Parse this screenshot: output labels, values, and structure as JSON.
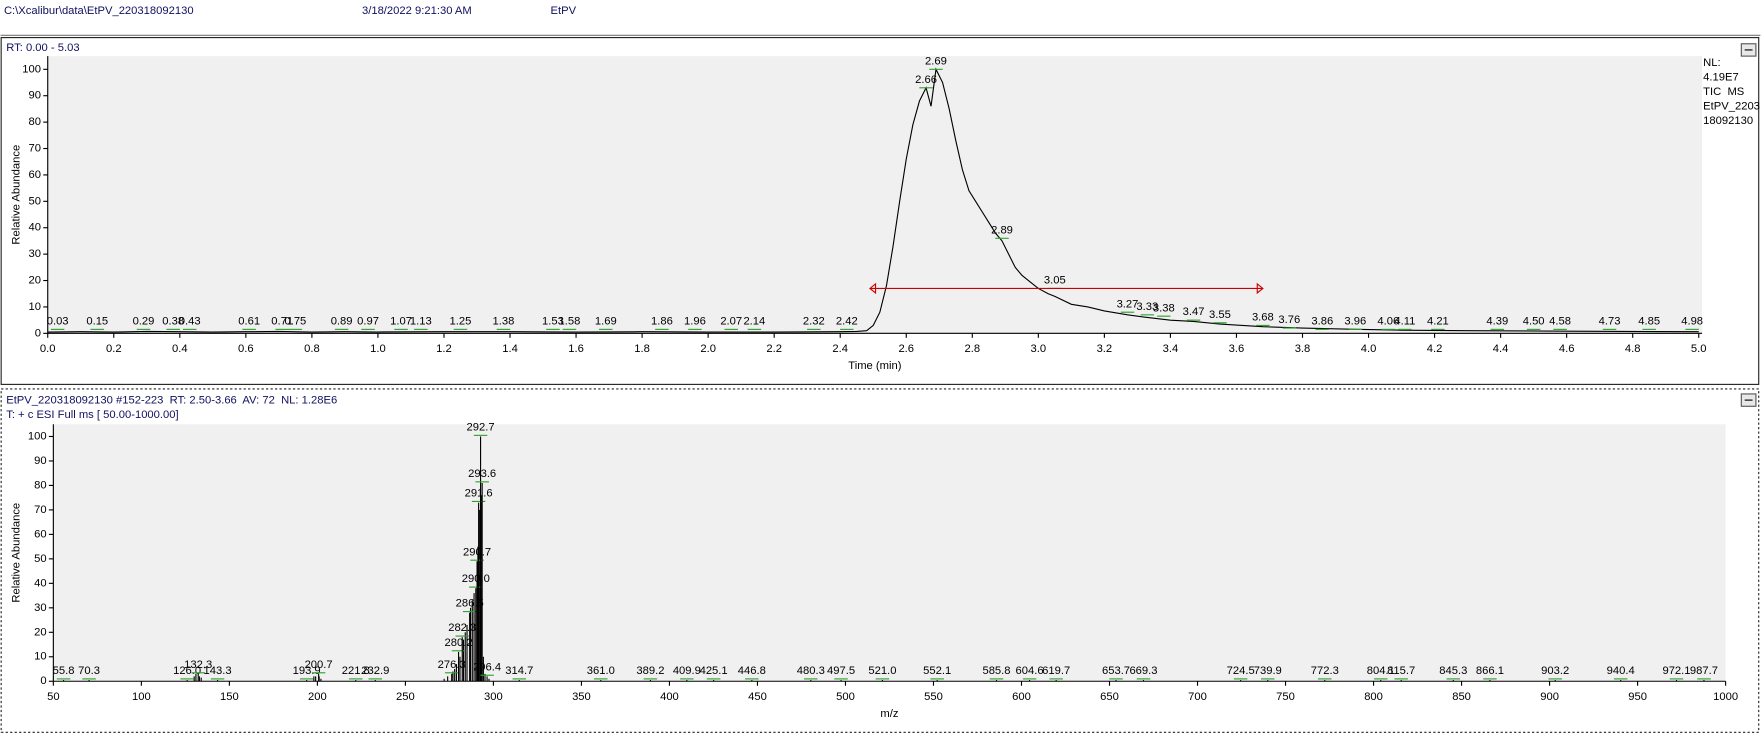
{
  "header": {
    "file": "C:\\Xcalibur\\data\\EtPV_220318092130",
    "date": "3/18/2022 9:21:30 AM",
    "sample": "EtPV"
  },
  "chart_data": [
    {
      "type": "line",
      "title": "RT: 0.00 - 5.03",
      "x_label": "Time (min)",
      "y_label": "Relative Abundance",
      "info": [
        "NL:",
        "4.19E7",
        "TIC  MS",
        "EtPV_2203",
        "18092130"
      ],
      "color": "#000000",
      "x": [
        0,
        0.1,
        0.2,
        0.3,
        0.4,
        0.5,
        0.6,
        0.7,
        0.8,
        0.9,
        1.0,
        1.2,
        1.4,
        1.6,
        1.8,
        2.0,
        2.2,
        2.4,
        2.45,
        2.48,
        2.5,
        2.52,
        2.54,
        2.56,
        2.58,
        2.6,
        2.62,
        2.64,
        2.66,
        2.675,
        2.69,
        2.71,
        2.73,
        2.75,
        2.77,
        2.79,
        2.81,
        2.83,
        2.85,
        2.87,
        2.89,
        2.91,
        2.93,
        2.95,
        2.97,
        3.0,
        3.03,
        3.05,
        3.1,
        3.15,
        3.2,
        3.27,
        3.33,
        3.4,
        3.47,
        3.55,
        3.68,
        3.8,
        3.96,
        4.1,
        4.3,
        4.6,
        5.0
      ],
      "values": [
        0.5,
        0.6,
        0.5,
        0.7,
        0.6,
        0.5,
        0.6,
        0.7,
        0.5,
        0.6,
        0.5,
        0.6,
        0.6,
        0.5,
        0.6,
        0.5,
        0.5,
        0.6,
        0.7,
        1,
        3,
        8,
        18,
        33,
        50,
        66,
        79,
        88,
        93,
        86,
        100,
        95,
        85,
        73,
        62,
        54,
        50,
        46,
        42,
        38,
        35,
        30,
        25,
        22,
        20,
        17,
        15,
        14,
        11,
        10,
        8.5,
        7,
        6,
        5,
        4.5,
        3.5,
        2.5,
        2,
        1.5,
        1.2,
        1,
        0.8,
        0.6
      ],
      "peak_labels": {
        "color": "#2ca02c",
        "x": [
          0.03,
          0.15,
          0.29,
          0.38,
          0.43,
          0.61,
          0.71,
          0.75,
          0.89,
          0.97,
          1.07,
          1.13,
          1.25,
          1.38,
          1.53,
          1.58,
          1.69,
          1.86,
          1.96,
          2.07,
          2.14,
          2.32,
          2.42,
          2.66,
          2.69,
          2.89,
          3.05,
          3.27,
          3.33,
          3.38,
          3.47,
          3.55,
          3.68,
          3.76,
          3.86,
          3.96,
          4.06,
          4.11,
          4.21,
          4.39,
          {
            "value": 4.5,
            "label": "4.50"
          },
          4.58,
          4.73,
          4.85,
          4.98
        ],
        "values": [
          1.5,
          1.5,
          1.5,
          1.5,
          1.5,
          1.5,
          1.5,
          1.5,
          1.5,
          1.5,
          1.5,
          1.5,
          1.5,
          1.5,
          1.5,
          1.5,
          1.5,
          1.5,
          1.5,
          1.5,
          1.5,
          1.5,
          1.5,
          93,
          100,
          36,
          17,
          8,
          7,
          6.5,
          5,
          4,
          3,
          2,
          1.5,
          1.5,
          1.5,
          1.5,
          1.5,
          1.5,
          1.5,
          1.5,
          1.5,
          1.5,
          1.5
        ]
      },
      "range_bar": {
        "xlim": [
          2.49,
          3.68
        ],
        "y": 17,
        "color": "#cc0000"
      },
      "xlim": [
        0,
        5.01
      ],
      "ylim": [
        0,
        105
      ],
      "xticks": [
        {
          "value": 0,
          "label": "0.0"
        },
        0.2,
        0.4,
        0.6,
        0.8,
        {
          "value": 1,
          "label": "1.0"
        },
        1.2,
        1.4,
        1.6,
        1.8,
        {
          "value": 2,
          "label": "2.0"
        },
        2.2,
        2.4,
        2.6,
        2.8,
        {
          "value": 3,
          "label": "3.0"
        },
        3.2,
        3.4,
        3.6,
        3.8,
        {
          "value": 4,
          "label": "4.0"
        },
        4.2,
        4.4,
        4.6,
        4.8,
        {
          "value": 5,
          "label": "5.0"
        }
      ],
      "yticks": [
        0,
        10,
        20,
        30,
        40,
        50,
        60,
        70,
        80,
        90,
        100
      ]
    },
    {
      "type": "bar",
      "title": "EtPV_220318092130 #152-223  RT: 2.50-3.66  AV: 72  NL: 1.28E6",
      "subtitle": "T: + c ESI Full ms [ 50.00-1000.00]",
      "x_label": "m/z",
      "y_label": "Relative Abundance",
      "color": "#000000",
      "label_color": "#2ca02c",
      "labeled_peaks": {
        "x": [
          55.8,
          70.3,
          {
            "value": 126,
            "label": "126.0"
          },
          132.3,
          143.3,
          193.9,
          200.7,
          221.8,
          232.9,
          276.3,
          280.2,
          282.3,
          286.5,
          {
            "value": 290,
            "label": "290.0"
          },
          290.7,
          291.6,
          292.7,
          293.6,
          296.4,
          314.7,
          {
            "value": 361,
            "label": "361.0"
          },
          389.2,
          409.9,
          425.1,
          446.8,
          480.3,
          497.5,
          {
            "value": 521,
            "label": "521.0"
          },
          552.1,
          585.8,
          604.6,
          619.7,
          653.7,
          669.3,
          724.5,
          739.9,
          772.3,
          804.1,
          815.7,
          845.3,
          866.1,
          903.2,
          940.4,
          972.1,
          987.7
        ],
        "values": [
          0.5,
          0.5,
          0.5,
          3,
          0.5,
          0.5,
          3,
          0.5,
          0.5,
          3,
          12,
          18,
          28,
          38,
          49,
          73,
          100,
          81,
          2,
          0.5,
          0.5,
          0.5,
          0.5,
          0.5,
          0.5,
          0.5,
          0.5,
          0.5,
          0.5,
          0.5,
          0.5,
          0.5,
          0.5,
          0.5,
          0.5,
          0.5,
          0.5,
          0.5,
          0.5,
          0.5,
          0.5,
          0.5,
          0.5,
          0.5,
          0.5
        ]
      },
      "other_peaks": {
        "x": [
          130,
          131,
          133,
          134,
          198,
          199,
          201,
          202,
          272,
          274,
          277,
          278,
          279,
          281,
          283,
          284,
          285,
          287,
          288,
          289,
          291.2,
          292.2,
          293.1,
          294.3,
          295.2,
          297.5
        ],
        "values": [
          2,
          3,
          2,
          1.5,
          2,
          2,
          2,
          1,
          1,
          2,
          4,
          5,
          7,
          10,
          17,
          20,
          23,
          30,
          33,
          36,
          55,
          70,
          76,
          10,
          3,
          1
        ]
      },
      "xlim": [
        50,
        1000
      ],
      "ylim": [
        0,
        105
      ],
      "xticks": [
        50,
        100,
        150,
        200,
        250,
        300,
        350,
        400,
        450,
        500,
        550,
        600,
        650,
        700,
        750,
        800,
        850,
        900,
        950,
        1000
      ],
      "yticks": [
        0,
        10,
        20,
        30,
        40,
        50,
        60,
        70,
        80,
        90,
        100
      ]
    }
  ]
}
